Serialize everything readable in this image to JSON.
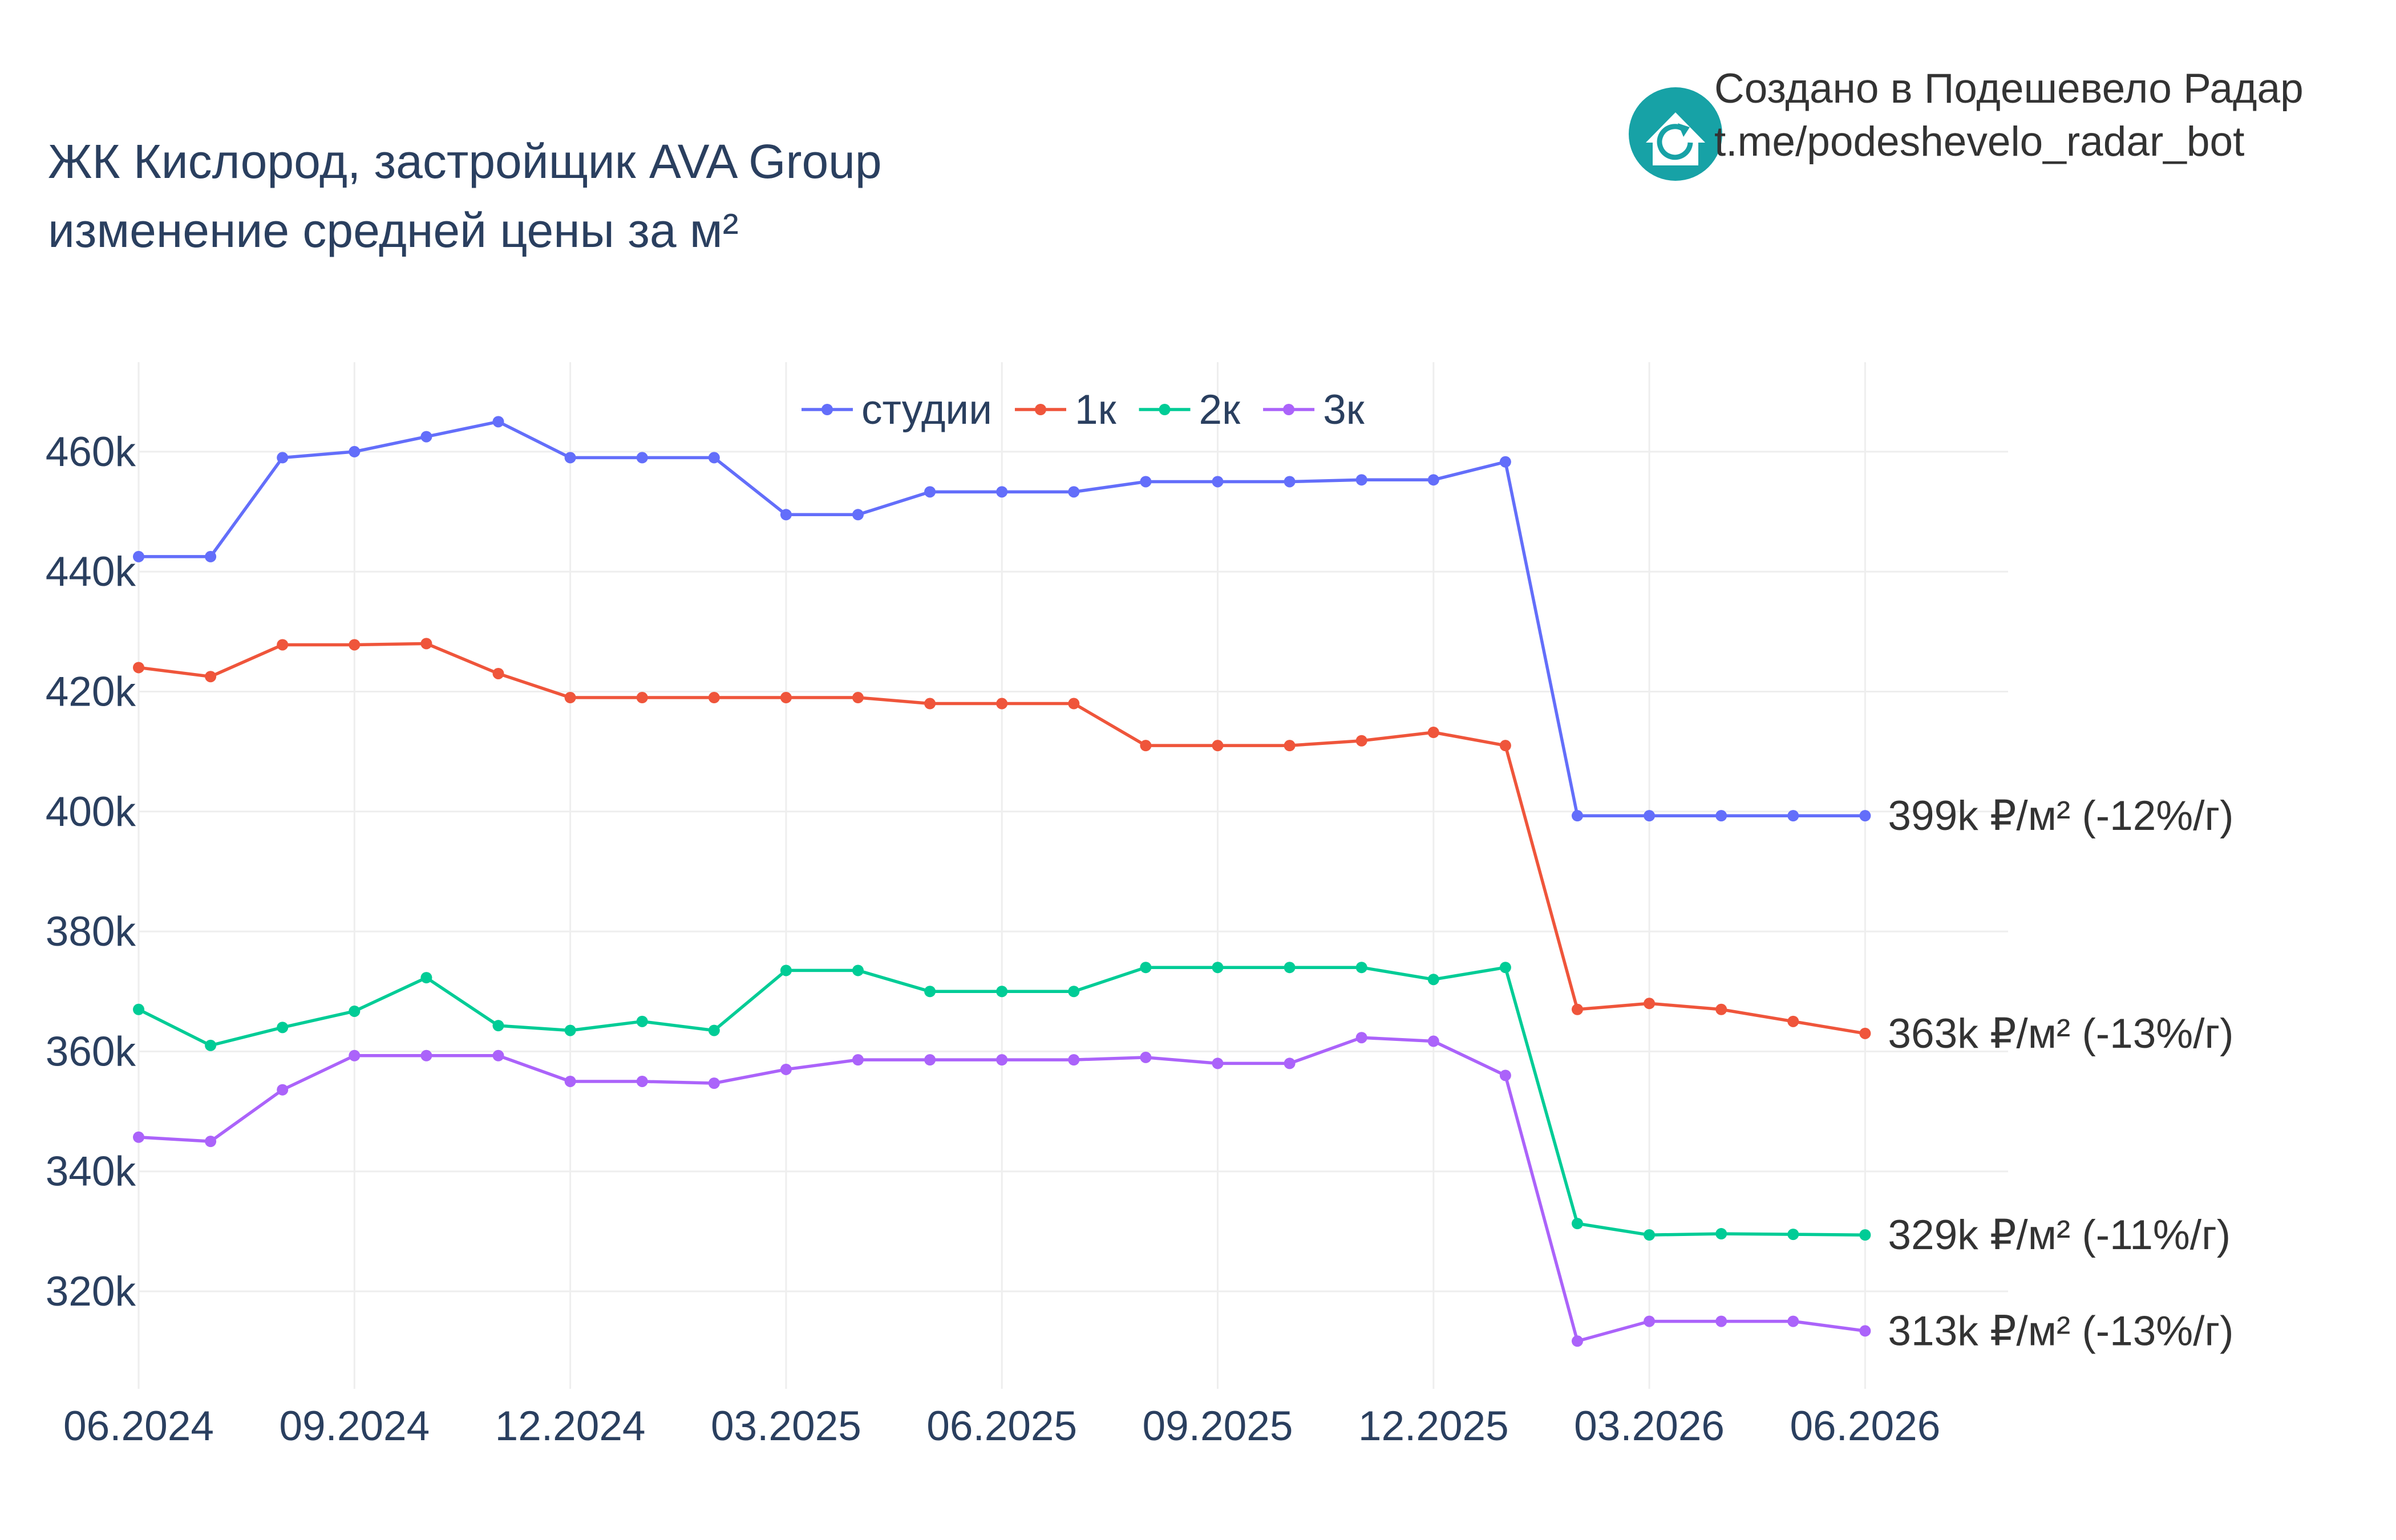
{
  "title": {
    "line1": "ЖК Кислород, застройщик AVA Group",
    "line2": "изменение средней цены за м²"
  },
  "credit": {
    "line1": "Создано в Подешевело Радар",
    "line2": "t.me/podeshevelo_radar_bot",
    "logo_icon": "house-refresh-icon",
    "logo_color": "#17a2a6"
  },
  "chart_data": {
    "type": "line",
    "x": [
      "2024-06",
      "2024-07",
      "2024-08",
      "2024-09",
      "2024-10",
      "2024-11",
      "2024-12",
      "2025-01",
      "2025-02",
      "2025-03",
      "2025-04",
      "2025-05",
      "2025-06",
      "2025-07",
      "2025-08",
      "2025-09",
      "2025-10",
      "2025-11",
      "2025-12",
      "2026-01",
      "2026-02",
      "2026-03",
      "2026-04",
      "2026-05",
      "2026-06"
    ],
    "x_ticks": [
      "06.2024",
      "09.2024",
      "12.2024",
      "03.2025",
      "06.2025",
      "09.2025",
      "12.2025",
      "03.2026",
      "06.2026"
    ],
    "y_ticks": [
      "320k",
      "340k",
      "360k",
      "380k",
      "400k",
      "420k",
      "440k",
      "460k"
    ],
    "y_tick_values": [
      320000,
      340000,
      360000,
      380000,
      400000,
      420000,
      440000,
      460000
    ],
    "ylim": [
      302000,
      475000
    ],
    "grid": true,
    "legend_position": "top-center",
    "series": [
      {
        "name": "студии",
        "color": "#636efa",
        "values": [
          442500,
          442500,
          459000,
          460000,
          462500,
          465000,
          459000,
          459000,
          459000,
          449500,
          449500,
          453300,
          453300,
          453300,
          455000,
          455000,
          455000,
          455300,
          455300,
          458300,
          399300,
          399300,
          399300,
          399300,
          399300
        ],
        "end_label": "399k ₽/м² (-12%/г)"
      },
      {
        "name": "1к",
        "color": "#ef553b",
        "values": [
          424000,
          422500,
          427800,
          427800,
          428000,
          423000,
          419000,
          419000,
          419000,
          419000,
          419000,
          418000,
          418000,
          418000,
          411000,
          411000,
          411000,
          411800,
          413200,
          411000,
          367000,
          368000,
          367000,
          365000,
          363000
        ],
        "end_label": "363k ₽/м² (-13%/г)"
      },
      {
        "name": "2к",
        "color": "#00cc96",
        "values": [
          367000,
          361000,
          364000,
          366700,
          372300,
          364300,
          363500,
          365000,
          363500,
          373500,
          373500,
          370000,
          370000,
          370000,
          374000,
          374000,
          374000,
          374000,
          372000,
          374000,
          331300,
          329400,
          329600,
          329500,
          329400
        ],
        "end_label": "329k ₽/м² (-11%/г)"
      },
      {
        "name": "3к",
        "color": "#ab63fa",
        "values": [
          345700,
          345000,
          353600,
          359300,
          359300,
          359300,
          355000,
          355000,
          354700,
          357000,
          358600,
          358600,
          358600,
          358600,
          359000,
          358000,
          358000,
          362300,
          361700,
          356000,
          311700,
          315000,
          315000,
          315000,
          313400
        ],
        "end_label": "313k ₽/м² (-13%/г)"
      }
    ]
  }
}
